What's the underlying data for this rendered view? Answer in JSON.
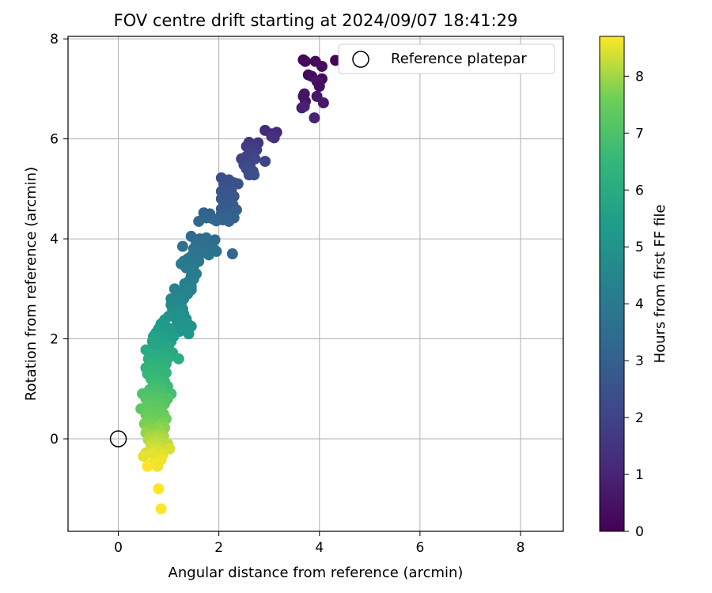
{
  "chart_data": {
    "type": "scatter",
    "title": "FOV centre drift starting at 2024/09/07 18:41:29",
    "xlabel": "Angular distance from reference (arcmin)",
    "ylabel": "Rotation from reference (arcmin)",
    "xlim": [
      -1,
      8.85
    ],
    "ylim": [
      -1.85,
      8.05
    ],
    "xticks": [
      "0",
      "2",
      "4",
      "6",
      "8"
    ],
    "yticks": [
      "0",
      "2",
      "4",
      "6",
      "8"
    ],
    "grid": true,
    "legend": {
      "position": "top-right",
      "entries": [
        "Reference platepar"
      ]
    },
    "reference_point": {
      "x": 0,
      "y": 0
    },
    "colorbar": {
      "label": "Hours from first FF file",
      "range": [
        0,
        8.7
      ],
      "ticks": [
        "0",
        "1",
        "2",
        "3",
        "4",
        "5",
        "6",
        "7",
        "8"
      ],
      "colormap": "viridis"
    },
    "points": [
      [
        3.68,
        7.58,
        0.1
      ],
      [
        3.72,
        7.55,
        0.2
      ],
      [
        4.32,
        7.57,
        0.1
      ],
      [
        3.92,
        7.55,
        0.2
      ],
      [
        4.05,
        7.45,
        0.3
      ],
      [
        3.78,
        7.28,
        0.3
      ],
      [
        3.85,
        7.25,
        0.4
      ],
      [
        4.05,
        7.2,
        0.3
      ],
      [
        3.95,
        7.15,
        0.5
      ],
      [
        4.0,
        7.05,
        0.4
      ],
      [
        3.7,
        6.9,
        0.6
      ],
      [
        3.68,
        6.85,
        0.5
      ],
      [
        3.72,
        6.75,
        0.5
      ],
      [
        3.95,
        6.85,
        0.6
      ],
      [
        4.08,
        6.72,
        0.7
      ],
      [
        3.65,
        6.62,
        0.8
      ],
      [
        3.9,
        6.42,
        0.9
      ],
      [
        3.7,
        6.65,
        0.9
      ],
      [
        2.92,
        6.17,
        1.2
      ],
      [
        3.05,
        6.1,
        1.1
      ],
      [
        3.15,
        6.13,
        1.2
      ],
      [
        3.1,
        6.02,
        1.3
      ],
      [
        3.05,
        6.05,
        1.4
      ],
      [
        2.78,
        5.92,
        1.5
      ],
      [
        2.6,
        5.93,
        1.6
      ],
      [
        2.7,
        5.88,
        1.7
      ],
      [
        2.55,
        5.85,
        1.7
      ],
      [
        2.62,
        5.8,
        1.8
      ],
      [
        2.75,
        5.78,
        1.8
      ],
      [
        2.68,
        5.7,
        1.9
      ],
      [
        2.55,
        5.65,
        1.9
      ],
      [
        2.45,
        5.6,
        2.0
      ],
      [
        2.6,
        5.62,
        2.0
      ],
      [
        2.72,
        5.6,
        2.1
      ],
      [
        2.92,
        5.55,
        2.0
      ],
      [
        2.5,
        5.48,
        2.1
      ],
      [
        2.62,
        5.45,
        2.2
      ],
      [
        2.55,
        5.4,
        2.2
      ],
      [
        2.68,
        5.35,
        2.3
      ],
      [
        2.6,
        5.28,
        2.3
      ],
      [
        2.7,
        5.28,
        2.4
      ],
      [
        2.05,
        5.22,
        2.3
      ],
      [
        2.2,
        5.18,
        2.4
      ],
      [
        2.1,
        5.1,
        2.4
      ],
      [
        2.3,
        5.12,
        2.5
      ],
      [
        2.38,
        5.1,
        2.5
      ],
      [
        2.15,
        5.0,
        2.5
      ],
      [
        2.05,
        4.95,
        2.6
      ],
      [
        2.25,
        4.95,
        2.6
      ],
      [
        2.12,
        4.88,
        2.6
      ],
      [
        2.3,
        4.85,
        2.7
      ],
      [
        2.05,
        4.8,
        2.7
      ],
      [
        2.2,
        4.75,
        2.7
      ],
      [
        2.1,
        4.7,
        2.8
      ],
      [
        2.28,
        4.68,
        2.8
      ],
      [
        2.05,
        4.6,
        2.8
      ],
      [
        2.18,
        4.55,
        2.9
      ],
      [
        2.35,
        4.58,
        2.9
      ],
      [
        2.05,
        4.5,
        2.9
      ],
      [
        2.25,
        4.45,
        3.0
      ],
      [
        2.1,
        4.4,
        3.0
      ],
      [
        2.3,
        4.42,
        3.0
      ],
      [
        2.2,
        4.35,
        3.0
      ],
      [
        2.08,
        4.38,
        3.1
      ],
      [
        1.7,
        4.52,
        3.1
      ],
      [
        1.82,
        4.5,
        3.1
      ],
      [
        1.75,
        4.42,
        3.2
      ],
      [
        1.88,
        4.4,
        3.2
      ],
      [
        1.95,
        4.36,
        3.2
      ],
      [
        1.6,
        4.35,
        3.3
      ],
      [
        2.27,
        3.7,
        3.2
      ],
      [
        1.45,
        4.05,
        3.4
      ],
      [
        1.62,
        4.0,
        3.4
      ],
      [
        1.75,
        4.02,
        3.5
      ],
      [
        1.85,
        3.95,
        3.5
      ],
      [
        1.92,
        3.98,
        3.4
      ],
      [
        1.55,
        3.9,
        3.5
      ],
      [
        1.7,
        3.88,
        3.6
      ],
      [
        1.8,
        3.85,
        3.6
      ],
      [
        1.88,
        3.82,
        3.6
      ],
      [
        1.95,
        3.75,
        3.7
      ],
      [
        1.28,
        3.85,
        3.6
      ],
      [
        1.5,
        3.8,
        3.7
      ],
      [
        1.62,
        3.78,
        3.7
      ],
      [
        1.72,
        3.72,
        3.7
      ],
      [
        1.8,
        3.68,
        3.8
      ],
      [
        1.55,
        3.68,
        3.8
      ],
      [
        1.45,
        3.65,
        3.8
      ],
      [
        1.38,
        3.6,
        3.8
      ],
      [
        1.5,
        3.58,
        3.9
      ],
      [
        1.6,
        3.55,
        3.9
      ],
      [
        1.3,
        3.55,
        3.9
      ],
      [
        1.42,
        3.5,
        4.0
      ],
      [
        1.25,
        3.5,
        4.0
      ],
      [
        1.5,
        3.45,
        4.0
      ],
      [
        1.35,
        3.42,
        4.0
      ],
      [
        1.48,
        3.35,
        4.1
      ],
      [
        1.55,
        3.3,
        4.1
      ],
      [
        1.45,
        3.25,
        4.1
      ],
      [
        1.5,
        3.2,
        4.2
      ],
      [
        1.4,
        3.15,
        4.2
      ],
      [
        1.32,
        3.1,
        4.2
      ],
      [
        1.45,
        3.05,
        4.3
      ],
      [
        1.35,
        3.0,
        4.3
      ],
      [
        1.45,
        2.98,
        4.3
      ],
      [
        1.28,
        2.95,
        4.4
      ],
      [
        1.12,
        3.0,
        4.4
      ],
      [
        1.38,
        2.9,
        4.4
      ],
      [
        1.2,
        2.85,
        4.5
      ],
      [
        1.3,
        2.8,
        4.5
      ],
      [
        1.05,
        2.8,
        4.5
      ],
      [
        1.15,
        2.75,
        4.6
      ],
      [
        1.25,
        2.72,
        4.6
      ],
      [
        1.05,
        2.68,
        4.6
      ],
      [
        1.18,
        2.65,
        4.7
      ],
      [
        1.28,
        2.6,
        4.7
      ],
      [
        1.08,
        2.58,
        4.7
      ],
      [
        1.2,
        2.55,
        4.8
      ],
      [
        1.3,
        2.5,
        4.8
      ],
      [
        1.1,
        2.48,
        4.8
      ],
      [
        1.25,
        2.45,
        4.9
      ],
      [
        1.35,
        2.4,
        4.9
      ],
      [
        1.15,
        2.4,
        4.9
      ],
      [
        1.28,
        2.35,
        5.0
      ],
      [
        1.4,
        2.28,
        5.0
      ],
      [
        1.2,
        2.3,
        5.0
      ],
      [
        1.45,
        2.25,
        5.1
      ],
      [
        1.3,
        2.2,
        5.1
      ],
      [
        1.4,
        2.1,
        5.2
      ],
      [
        1.22,
        2.15,
        5.1
      ],
      [
        1.12,
        2.22,
        5.1
      ],
      [
        1.0,
        2.45,
        5.0
      ],
      [
        0.92,
        2.38,
        5.2
      ],
      [
        0.85,
        2.3,
        5.3
      ],
      [
        0.95,
        2.25,
        5.3
      ],
      [
        0.8,
        2.2,
        5.4
      ],
      [
        0.9,
        2.15,
        5.4
      ],
      [
        1.05,
        2.18,
        5.3
      ],
      [
        0.75,
        2.12,
        5.5
      ],
      [
        0.88,
        2.08,
        5.5
      ],
      [
        1.0,
        2.05,
        5.4
      ],
      [
        1.1,
        2.05,
        5.4
      ],
      [
        0.7,
        2.05,
        5.6
      ],
      [
        0.82,
        2.0,
        5.6
      ],
      [
        0.95,
        1.98,
        5.6
      ],
      [
        1.05,
        1.95,
        5.5
      ],
      [
        0.68,
        1.95,
        5.7
      ],
      [
        0.78,
        1.92,
        5.7
      ],
      [
        0.9,
        1.88,
        5.7
      ],
      [
        1.0,
        1.85,
        5.8
      ],
      [
        0.55,
        1.78,
        5.9
      ],
      [
        0.7,
        1.8,
        5.8
      ],
      [
        0.82,
        1.78,
        5.8
      ],
      [
        0.95,
        1.75,
        5.9
      ],
      [
        1.08,
        1.72,
        5.9
      ],
      [
        0.65,
        1.7,
        6.0
      ],
      [
        0.75,
        1.68,
        6.0
      ],
      [
        0.88,
        1.65,
        6.0
      ],
      [
        1.0,
        1.62,
        6.1
      ],
      [
        1.2,
        1.6,
        6.1
      ],
      [
        0.6,
        1.6,
        6.1
      ],
      [
        0.72,
        1.55,
        6.2
      ],
      [
        0.85,
        1.52,
        6.2
      ],
      [
        0.95,
        1.5,
        6.2
      ],
      [
        0.62,
        1.48,
        6.3
      ],
      [
        0.78,
        1.45,
        6.3
      ],
      [
        0.55,
        1.42,
        6.3
      ],
      [
        0.9,
        1.42,
        6.3
      ],
      [
        0.68,
        1.38,
        6.4
      ],
      [
        0.82,
        1.35,
        6.4
      ],
      [
        0.95,
        1.32,
        6.4
      ],
      [
        0.58,
        1.3,
        6.5
      ],
      [
        0.72,
        1.28,
        6.5
      ],
      [
        0.85,
        1.25,
        6.5
      ],
      [
        0.65,
        1.2,
        6.6
      ],
      [
        0.78,
        1.18,
        6.6
      ],
      [
        0.92,
        1.15,
        6.6
      ],
      [
        0.7,
        1.1,
        6.7
      ],
      [
        0.82,
        1.08,
        6.7
      ],
      [
        0.98,
        1.05,
        6.6
      ],
      [
        0.75,
        1.02,
        6.8
      ],
      [
        0.88,
        1.0,
        6.8
      ],
      [
        0.62,
        0.98,
        6.8
      ],
      [
        0.8,
        0.95,
        6.9
      ],
      [
        0.92,
        0.92,
        6.9
      ],
      [
        1.05,
        0.9,
        6.8
      ],
      [
        0.48,
        0.9,
        7.0
      ],
      [
        0.6,
        0.88,
        7.0
      ],
      [
        0.72,
        0.85,
        7.0
      ],
      [
        0.85,
        0.82,
        7.1
      ],
      [
        0.98,
        0.8,
        7.1
      ],
      [
        0.55,
        0.8,
        7.1
      ],
      [
        0.68,
        0.75,
        7.2
      ],
      [
        0.8,
        0.72,
        7.2
      ],
      [
        0.92,
        0.7,
        7.2
      ],
      [
        0.58,
        0.68,
        7.3
      ],
      [
        0.72,
        0.65,
        7.3
      ],
      [
        0.85,
        0.62,
        7.3
      ],
      [
        0.45,
        0.6,
        7.3
      ],
      [
        0.62,
        0.55,
        7.4
      ],
      [
        0.78,
        0.52,
        7.4
      ],
      [
        0.9,
        0.5,
        7.4
      ],
      [
        0.55,
        0.48,
        7.5
      ],
      [
        0.7,
        0.45,
        7.5
      ],
      [
        0.82,
        0.42,
        7.5
      ],
      [
        0.95,
        0.4,
        7.6
      ],
      [
        0.6,
        0.38,
        7.6
      ],
      [
        0.75,
        0.35,
        7.6
      ],
      [
        0.88,
        0.32,
        7.7
      ],
      [
        0.52,
        0.3,
        7.7
      ],
      [
        0.68,
        0.28,
        7.7
      ],
      [
        0.8,
        0.25,
        7.8
      ],
      [
        0.92,
        0.22,
        7.8
      ],
      [
        0.58,
        0.2,
        7.8
      ],
      [
        0.72,
        0.18,
        7.8
      ],
      [
        0.85,
        0.15,
        7.9
      ],
      [
        0.55,
        0.12,
        7.9
      ],
      [
        0.68,
        0.1,
        7.9
      ],
      [
        0.78,
        0.08,
        8.0
      ],
      [
        0.9,
        0.05,
        8.0
      ],
      [
        0.62,
        0.05,
        8.0
      ],
      [
        0.75,
        0.02,
        8.1
      ],
      [
        0.88,
        0.0,
        8.1
      ],
      [
        0.6,
        -0.02,
        8.1
      ],
      [
        0.72,
        -0.05,
        8.2
      ],
      [
        0.85,
        -0.08,
        8.2
      ],
      [
        0.98,
        -0.1,
        8.2
      ],
      [
        0.65,
        -0.12,
        8.3
      ],
      [
        0.78,
        -0.15,
        8.3
      ],
      [
        0.9,
        -0.18,
        8.3
      ],
      [
        1.02,
        -0.2,
        8.4
      ],
      [
        0.7,
        -0.22,
        8.4
      ],
      [
        0.82,
        -0.25,
        8.4
      ],
      [
        0.55,
        -0.28,
        8.4
      ],
      [
        0.68,
        -0.3,
        8.5
      ],
      [
        0.88,
        -0.32,
        8.5
      ],
      [
        0.5,
        -0.35,
        8.5
      ],
      [
        0.75,
        -0.38,
        8.5
      ],
      [
        0.85,
        -0.42,
        8.6
      ],
      [
        0.7,
        -0.48,
        8.6
      ],
      [
        0.62,
        -0.52,
        8.6
      ],
      [
        0.78,
        -0.55,
        8.6
      ],
      [
        0.58,
        -0.55,
        8.7
      ],
      [
        0.8,
        -1.0,
        8.7
      ],
      [
        0.85,
        -1.4,
        8.7
      ]
    ]
  }
}
